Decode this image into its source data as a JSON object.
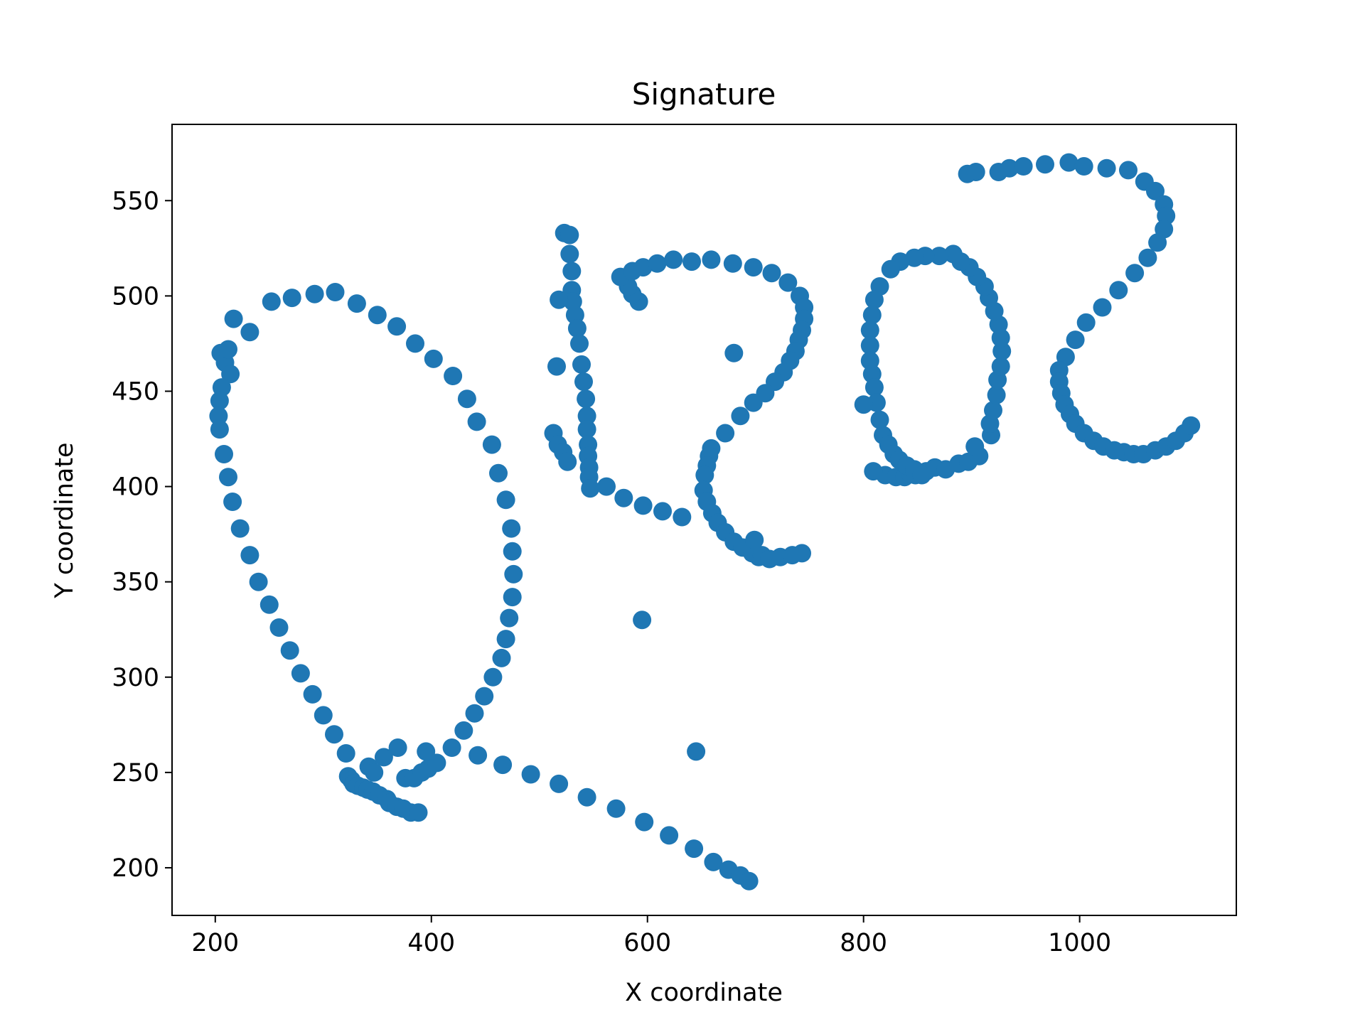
{
  "chart_data": {
    "type": "scatter",
    "title": "Signature",
    "xlabel": "X coordinate",
    "ylabel": "Y coordinate",
    "xlim": [
      160,
      1145
    ],
    "ylim": [
      175,
      590
    ],
    "xticks": [
      200,
      400,
      600,
      800,
      1000
    ],
    "yticks": [
      200,
      250,
      300,
      350,
      400,
      450,
      500,
      550
    ],
    "grid": false,
    "marker_color": "#1f77b4",
    "series": [
      {
        "points": [
          [
            205,
            470
          ],
          [
            209,
            465
          ],
          [
            212,
            472
          ],
          [
            214,
            459
          ],
          [
            206,
            452
          ],
          [
            204,
            445
          ],
          [
            203,
            437
          ],
          [
            204,
            430
          ],
          [
            208,
            417
          ],
          [
            212,
            405
          ],
          [
            216,
            392
          ],
          [
            223,
            378
          ],
          [
            232,
            364
          ],
          [
            240,
            350
          ],
          [
            250,
            338
          ],
          [
            259,
            326
          ],
          [
            269,
            314
          ],
          [
            279,
            302
          ],
          [
            290,
            291
          ],
          [
            300,
            280
          ],
          [
            310,
            270
          ],
          [
            321,
            260
          ],
          [
            323,
            248
          ],
          [
            326,
            246
          ],
          [
            328,
            244
          ],
          [
            332,
            243
          ],
          [
            337,
            242
          ],
          [
            341,
            241
          ],
          [
            346,
            240
          ],
          [
            352,
            238
          ],
          [
            359,
            236
          ],
          [
            361,
            234
          ],
          [
            368,
            232
          ],
          [
            374,
            231
          ],
          [
            381,
            229
          ],
          [
            388,
            229
          ],
          [
            342,
            253
          ],
          [
            347,
            250
          ],
          [
            356,
            258
          ],
          [
            369,
            263
          ],
          [
            376,
            247
          ],
          [
            384,
            247
          ],
          [
            391,
            250
          ],
          [
            397,
            252
          ],
          [
            405,
            255
          ],
          [
            395,
            261
          ],
          [
            419,
            263
          ],
          [
            430,
            272
          ],
          [
            440,
            281
          ],
          [
            449,
            290
          ],
          [
            457,
            300
          ],
          [
            465,
            310
          ],
          [
            469,
            320
          ],
          [
            472,
            331
          ],
          [
            475,
            342
          ],
          [
            476,
            354
          ],
          [
            475,
            366
          ],
          [
            474,
            378
          ],
          [
            469,
            393
          ],
          [
            462,
            407
          ],
          [
            456,
            422
          ],
          [
            442,
            434
          ],
          [
            433,
            446
          ],
          [
            420,
            458
          ],
          [
            402,
            467
          ],
          [
            385,
            475
          ],
          [
            368,
            484
          ],
          [
            350,
            490
          ],
          [
            331,
            496
          ],
          [
            311,
            502
          ],
          [
            292,
            501
          ],
          [
            271,
            499
          ],
          [
            252,
            497
          ],
          [
            232,
            481
          ],
          [
            217,
            488
          ],
          [
            443,
            259
          ],
          [
            466,
            254
          ],
          [
            492,
            249
          ],
          [
            518,
            244
          ],
          [
            544,
            237
          ],
          [
            571,
            231
          ],
          [
            597,
            224
          ],
          [
            620,
            217
          ],
          [
            643,
            210
          ],
          [
            661,
            203
          ],
          [
            675,
            199
          ],
          [
            686,
            196
          ],
          [
            694,
            193
          ],
          [
            595,
            330
          ],
          [
            645,
            261
          ],
          [
            523,
            533
          ],
          [
            528,
            532
          ],
          [
            528,
            522
          ],
          [
            530,
            513
          ],
          [
            530,
            503
          ],
          [
            531,
            497
          ],
          [
            533,
            490
          ],
          [
            535,
            483
          ],
          [
            537,
            475
          ],
          [
            539,
            464
          ],
          [
            541,
            455
          ],
          [
            543,
            446
          ],
          [
            544,
            437
          ],
          [
            544,
            430
          ],
          [
            545,
            422
          ],
          [
            545,
            416
          ],
          [
            546,
            410
          ],
          [
            546,
            405
          ],
          [
            547,
            399
          ],
          [
            562,
            400
          ],
          [
            578,
            394
          ],
          [
            596,
            390
          ],
          [
            614,
            387
          ],
          [
            632,
            384
          ],
          [
            518,
            498
          ],
          [
            516,
            463
          ],
          [
            513,
            428
          ],
          [
            517,
            422
          ],
          [
            522,
            418
          ],
          [
            526,
            413
          ],
          [
            592,
            497
          ],
          [
            586,
            501
          ],
          [
            582,
            505
          ],
          [
            575,
            510
          ],
          [
            586,
            513
          ],
          [
            596,
            515
          ],
          [
            609,
            517
          ],
          [
            624,
            519
          ],
          [
            641,
            518
          ],
          [
            659,
            519
          ],
          [
            679,
            517
          ],
          [
            698,
            515
          ],
          [
            715,
            512
          ],
          [
            730,
            507
          ],
          [
            741,
            500
          ],
          [
            745,
            494
          ],
          [
            745,
            488
          ],
          [
            743,
            482
          ],
          [
            740,
            477
          ],
          [
            737,
            471
          ],
          [
            732,
            466
          ],
          [
            726,
            460
          ],
          [
            718,
            455
          ],
          [
            709,
            449
          ],
          [
            698,
            444
          ],
          [
            686,
            437
          ],
          [
            672,
            428
          ],
          [
            659,
            420
          ],
          [
            657,
            416
          ],
          [
            655,
            411
          ],
          [
            653,
            406
          ],
          [
            652,
            398
          ],
          [
            655,
            392
          ],
          [
            660,
            386
          ],
          [
            665,
            381
          ],
          [
            672,
            376
          ],
          [
            680,
            371
          ],
          [
            688,
            368
          ],
          [
            697,
            365
          ],
          [
            703,
            363
          ],
          [
            706,
            364
          ],
          [
            713,
            362
          ],
          [
            723,
            363
          ],
          [
            734,
            364
          ],
          [
            743,
            365
          ],
          [
            699,
            372
          ],
          [
            680,
            470
          ],
          [
            820,
            406
          ],
          [
            830,
            405
          ],
          [
            838,
            405
          ],
          [
            843,
            407
          ],
          [
            848,
            406
          ],
          [
            858,
            408
          ],
          [
            866,
            410
          ],
          [
            876,
            409
          ],
          [
            888,
            412
          ],
          [
            897,
            413
          ],
          [
            907,
            416
          ],
          [
            903,
            421
          ],
          [
            918,
            427
          ],
          [
            917,
            433
          ],
          [
            920,
            440
          ],
          [
            923,
            448
          ],
          [
            924,
            456
          ],
          [
            927,
            463
          ],
          [
            928,
            471
          ],
          [
            927,
            478
          ],
          [
            925,
            485
          ],
          [
            921,
            492
          ],
          [
            916,
            499
          ],
          [
            912,
            505
          ],
          [
            905,
            510
          ],
          [
            898,
            515
          ],
          [
            890,
            518
          ],
          [
            883,
            522
          ],
          [
            870,
            521
          ],
          [
            857,
            521
          ],
          [
            847,
            520
          ],
          [
            834,
            518
          ],
          [
            825,
            514
          ],
          [
            815,
            505
          ],
          [
            810,
            498
          ],
          [
            808,
            490
          ],
          [
            806,
            482
          ],
          [
            806,
            474
          ],
          [
            806,
            466
          ],
          [
            808,
            459
          ],
          [
            810,
            452
          ],
          [
            812,
            444
          ],
          [
            815,
            435
          ],
          [
            818,
            427
          ],
          [
            823,
            422
          ],
          [
            828,
            417
          ],
          [
            833,
            414
          ],
          [
            840,
            411
          ],
          [
            847,
            409
          ],
          [
            854,
            406
          ],
          [
            809,
            408
          ],
          [
            800,
            443
          ]
        ]
      },
      {
        "points": [
          [
            925,
            565
          ],
          [
            935,
            567
          ],
          [
            948,
            568
          ],
          [
            968,
            569
          ],
          [
            990,
            570
          ],
          [
            1004,
            568
          ],
          [
            1025,
            567
          ],
          [
            1045,
            566
          ],
          [
            1060,
            560
          ],
          [
            1070,
            555
          ],
          [
            1078,
            548
          ],
          [
            1080,
            542
          ],
          [
            1078,
            535
          ],
          [
            1072,
            528
          ],
          [
            1063,
            520
          ],
          [
            1051,
            512
          ],
          [
            1036,
            503
          ],
          [
            1021,
            494
          ],
          [
            1006,
            486
          ],
          [
            996,
            477
          ],
          [
            987,
            468
          ],
          [
            981,
            461
          ],
          [
            981,
            455
          ],
          [
            983,
            449
          ],
          [
            986,
            443
          ],
          [
            991,
            438
          ],
          [
            996,
            433
          ],
          [
            1004,
            428
          ],
          [
            1013,
            424
          ],
          [
            1022,
            421
          ],
          [
            1032,
            419
          ],
          [
            1041,
            418
          ],
          [
            1050,
            417
          ],
          [
            1059,
            417
          ],
          [
            1070,
            419
          ],
          [
            1080,
            421
          ],
          [
            1089,
            424
          ],
          [
            1097,
            428
          ],
          [
            1103,
            432
          ],
          [
            896,
            564
          ],
          [
            904,
            565
          ]
        ]
      }
    ]
  }
}
